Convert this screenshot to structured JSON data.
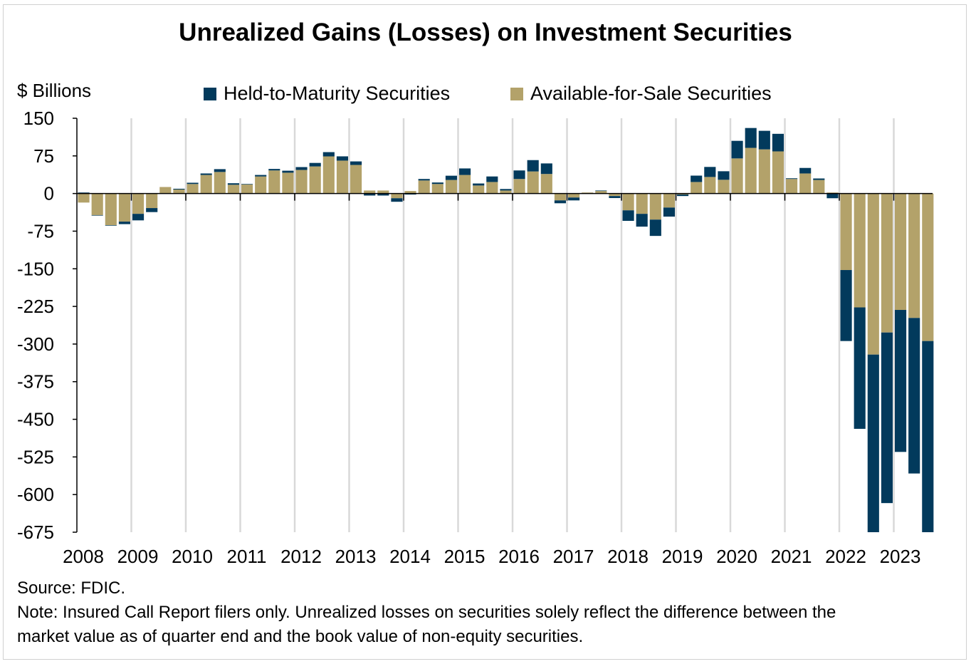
{
  "chart_data": {
    "type": "bar",
    "stacked": true,
    "title": "Unrealized Gains (Losses) on Investment Securities",
    "ylabel": "$ Billions",
    "xlabel": "",
    "ylim": [
      -675,
      150
    ],
    "yticks": [
      150,
      75,
      0,
      -75,
      -150,
      -225,
      -300,
      -375,
      -450,
      -525,
      -600,
      -675
    ],
    "xtick_labels": [
      "2008",
      "2009",
      "2010",
      "2011",
      "2012",
      "2013",
      "2014",
      "2015",
      "2016",
      "2017",
      "2018",
      "2019",
      "2020",
      "2021",
      "2022",
      "2023"
    ],
    "grid": "vertical at year boundaries",
    "legend_position": "top",
    "colors": {
      "htm": "#023a5c",
      "afs": "#b3a26a"
    },
    "categories": [
      "2008Q1",
      "2008Q2",
      "2008Q3",
      "2008Q4",
      "2009Q1",
      "2009Q2",
      "2009Q3",
      "2009Q4",
      "2010Q1",
      "2010Q2",
      "2010Q3",
      "2010Q4",
      "2011Q1",
      "2011Q2",
      "2011Q3",
      "2011Q4",
      "2012Q1",
      "2012Q2",
      "2012Q3",
      "2012Q4",
      "2013Q1",
      "2013Q2",
      "2013Q3",
      "2013Q4",
      "2014Q1",
      "2014Q2",
      "2014Q3",
      "2014Q4",
      "2015Q1",
      "2015Q2",
      "2015Q3",
      "2015Q4",
      "2016Q1",
      "2016Q2",
      "2016Q3",
      "2016Q4",
      "2017Q1",
      "2017Q2",
      "2017Q3",
      "2017Q4",
      "2018Q1",
      "2018Q2",
      "2018Q3",
      "2018Q4",
      "2019Q1",
      "2019Q2",
      "2019Q3",
      "2019Q4",
      "2020Q1",
      "2020Q2",
      "2020Q3",
      "2020Q4",
      "2021Q1",
      "2021Q2",
      "2021Q3",
      "2021Q4",
      "2022Q1",
      "2022Q2",
      "2022Q3",
      "2022Q4",
      "2023Q1",
      "2023Q2",
      "2023Q3"
    ],
    "series": [
      {
        "name": "Held-to-Maturity Securities",
        "key": "htm",
        "values": [
          2,
          -1,
          -1,
          -5,
          -13,
          -8,
          0,
          1.5,
          2.5,
          3,
          5.6,
          3,
          1,
          3,
          3,
          4,
          5.7,
          7,
          8.5,
          8.5,
          7,
          -4,
          -4,
          -7,
          -2,
          3,
          3,
          8.5,
          13,
          4,
          11,
          3,
          17,
          22.6,
          21,
          -5.7,
          -5.7,
          0,
          1,
          -4,
          -21,
          -25.5,
          -32.5,
          -18,
          -3,
          12.7,
          20,
          17,
          35,
          39.6,
          37,
          35,
          1.4,
          11,
          3,
          -9.4,
          -141.5,
          -242,
          -370,
          -340,
          -283,
          -310,
          -400
        ]
      },
      {
        "name": "Available-for-Sale Securities",
        "key": "afs",
        "values": [
          -18,
          -43,
          -63,
          -56,
          -40.5,
          -29,
          13,
          8,
          19,
          37,
          43,
          17.5,
          18,
          34,
          46,
          41.5,
          47,
          54,
          74,
          65.6,
          57,
          6,
          6,
          -9.4,
          5,
          26,
          19,
          27,
          37,
          16,
          23,
          6,
          29,
          44,
          39,
          -13.7,
          -8,
          2,
          5,
          -5,
          -33.5,
          -40.5,
          -52,
          -28,
          -2,
          23,
          33,
          27.4,
          70,
          91,
          88,
          84,
          29,
          40,
          27,
          2,
          -152.5,
          -227,
          -321,
          -277,
          -232,
          -248,
          -294
        ]
      }
    ]
  },
  "notes": {
    "source": "Source: FDIC.",
    "note_line1": "Note: Insured Call Report filers only. Unrealized losses on securities solely reflect the difference between the",
    "note_line2": "market value as of quarter end and the book value of non-equity securities."
  }
}
